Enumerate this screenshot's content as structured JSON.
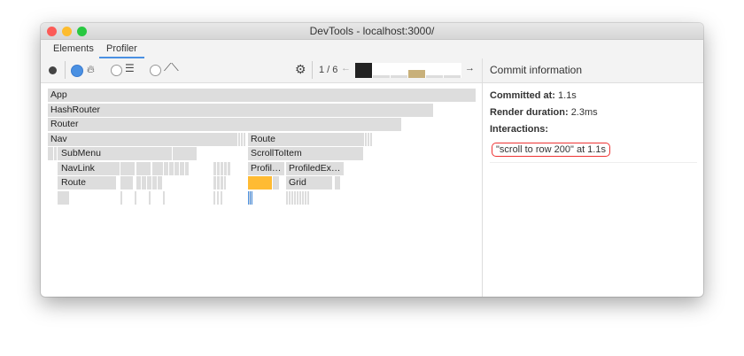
{
  "window": {
    "title": "DevTools - localhost:3000/"
  },
  "tabs": [
    {
      "label": "Elements"
    },
    {
      "label": "Profiler",
      "active": true
    }
  ],
  "toolbar": {
    "commit_counter": "1 / 6",
    "icons": [
      "record-icon",
      "flame-chart-icon",
      "ranked-chart-icon",
      "interactions-icon",
      "settings-icon",
      "prev-arrow-icon",
      "next-arrow-icon"
    ]
  },
  "flamegraph": {
    "nodes": [
      "App",
      "HashRouter",
      "Router",
      "Nav",
      "Route",
      "SubMenu",
      "ScrollToItem",
      "NavLink",
      "Profil…",
      "ProfiledEx…",
      "Route",
      "Grid"
    ]
  },
  "commit_info": {
    "header": "Commit information",
    "committed_at_label": "Committed at:",
    "committed_at": "1.1s",
    "render_duration_label": "Render duration:",
    "render_duration": "2.3ms",
    "interactions_label": "Interactions:",
    "interaction": "\"scroll to row 200\" at 1.1s"
  },
  "colors": {
    "accent": "#4a90e2",
    "selected_node": "#ffbb33",
    "selected_commit": "#c8b07a",
    "highlight": "#ee3333"
  }
}
